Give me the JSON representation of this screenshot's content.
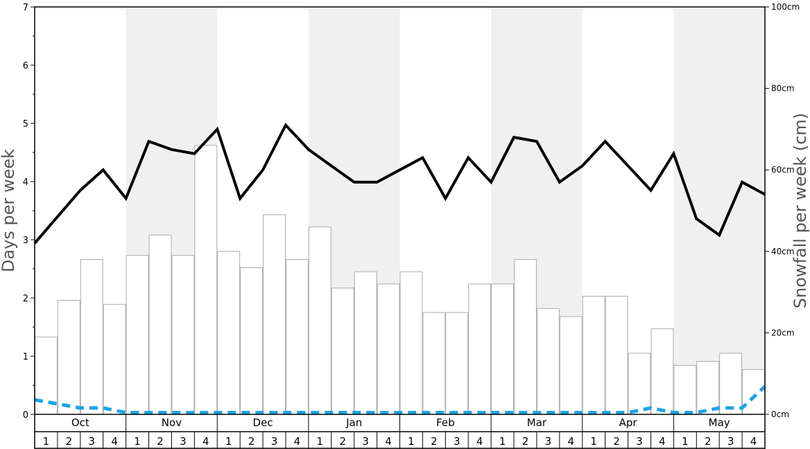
{
  "chart_data": {
    "type": "bar",
    "left_axis": {
      "label": "Days per week",
      "ylim": [
        0,
        7
      ],
      "ticks": [
        0,
        1,
        2,
        3,
        4,
        5,
        6,
        7
      ]
    },
    "right_axis": {
      "label": "Snowfall per week (cm)",
      "ylim": [
        0,
        100
      ],
      "ticks": [
        "0cm",
        "20cm",
        "40cm",
        "60cm",
        "80cm",
        "100cm"
      ]
    },
    "months": [
      "Oct",
      "Nov",
      "Dec",
      "Jan",
      "Feb",
      "Mar",
      "Apr",
      "May"
    ],
    "weeks": [
      "1",
      "2",
      "3",
      "4"
    ],
    "series": [
      {
        "kind": "bar",
        "axis": "right",
        "values": [
          19,
          28,
          38,
          27,
          39,
          44,
          39,
          66,
          40,
          36,
          49,
          38,
          46,
          31,
          35,
          32,
          35,
          25,
          25,
          32,
          32,
          38,
          26,
          24,
          29,
          29,
          15,
          21,
          12,
          13,
          15,
          11
        ]
      },
      {
        "kind": "line",
        "axis": "right",
        "style": "solid",
        "color": "#000000",
        "values": [
          42,
          48.5,
          55,
          60,
          53,
          67,
          65,
          64,
          70,
          53,
          60,
          71,
          65,
          61,
          57,
          57,
          60,
          63,
          53,
          63,
          57,
          68,
          67,
          57,
          61,
          67,
          61,
          55,
          64,
          48,
          44,
          57,
          54
        ]
      },
      {
        "kind": "line",
        "axis": "left",
        "style": "dashed",
        "color": "#1ca3e6",
        "values": [
          0.25,
          0.18,
          0.11,
          0.11,
          0.03,
          0.03,
          0.03,
          0.03,
          0.03,
          0.03,
          0.03,
          0.03,
          0.03,
          0.03,
          0.03,
          0.03,
          0.03,
          0.03,
          0.03,
          0.03,
          0.03,
          0.03,
          0.03,
          0.03,
          0.03,
          0.03,
          0.03,
          0.11,
          0.03,
          0.03,
          0.11,
          0.11,
          0.48
        ]
      }
    ],
    "colors": {
      "shade": "#f0f0f0",
      "bar_fill": "#ffffff",
      "bar_stroke": "#aaaaaa",
      "axis": "#000000",
      "title": "#555555"
    }
  }
}
